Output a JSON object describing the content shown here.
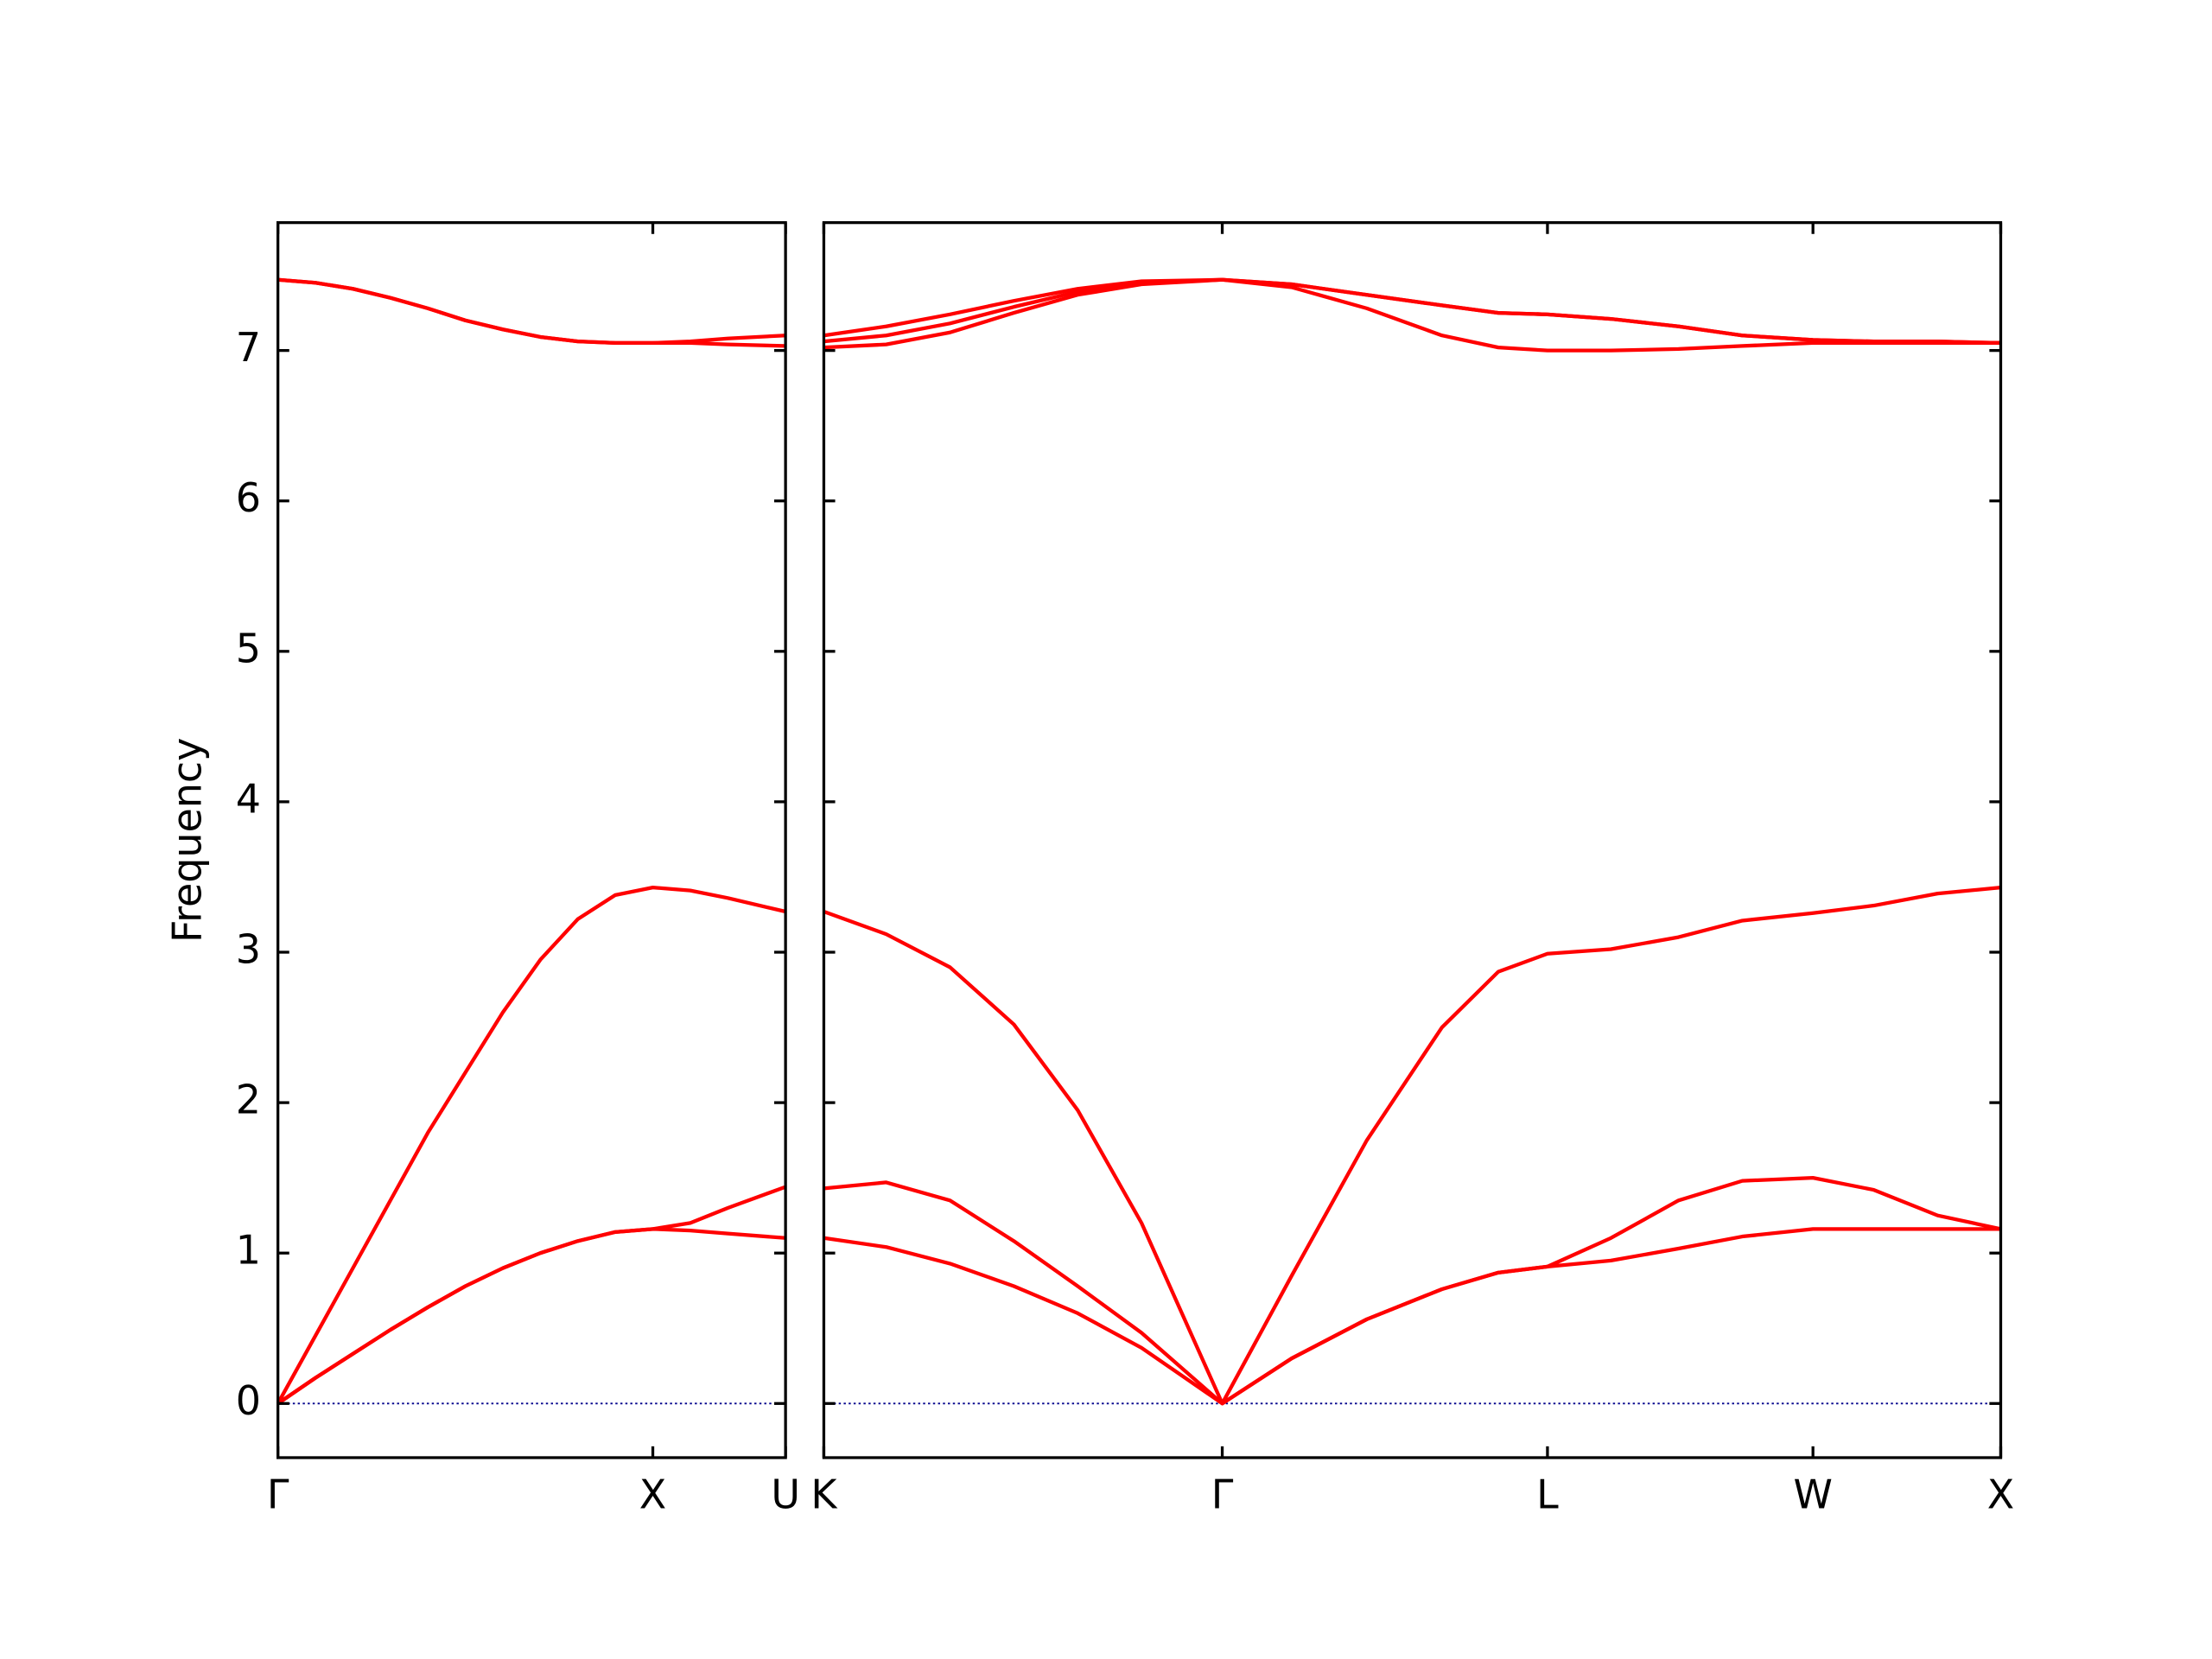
{
  "chart_data": [
    {
      "type": "line",
      "y_label": "Frequency",
      "x": [
        0,
        0.1,
        0.2,
        0.3,
        0.4,
        0.5,
        0.6,
        0.7,
        0.8,
        0.9,
        1.0,
        1.1,
        1.2,
        1.354
      ],
      "xlim": [
        0,
        1.354
      ],
      "xticks": [
        {
          "value": 0,
          "label": "Γ"
        },
        {
          "value": 1.0,
          "label": "X"
        },
        {
          "value": 1.354,
          "label": "U"
        }
      ],
      "ylim": [
        -0.36,
        7.85
      ],
      "yticks": [
        0,
        1,
        2,
        3,
        4,
        5,
        6,
        7
      ],
      "show_ytick_labels": true,
      "zero_line_color": "#00008b",
      "series": [
        {
          "color": "#ff0000",
          "values": [
            0,
            0.17,
            0.33,
            0.49,
            0.64,
            0.78,
            0.9,
            1.0,
            1.08,
            1.14,
            1.16,
            1.15,
            1.13,
            1.1
          ]
        },
        {
          "color": "#ff0000",
          "values": [
            0,
            0.17,
            0.33,
            0.49,
            0.64,
            0.78,
            0.9,
            1.0,
            1.08,
            1.14,
            1.16,
            1.2,
            1.3,
            1.44
          ]
        },
        {
          "color": "#ff0000",
          "values": [
            0,
            0.45,
            0.9,
            1.35,
            1.8,
            2.2,
            2.6,
            2.95,
            3.22,
            3.38,
            3.43,
            3.41,
            3.36,
            3.27
          ]
        },
        {
          "color": "#ff0000",
          "values": [
            7.47,
            7.45,
            7.41,
            7.35,
            7.28,
            7.2,
            7.14,
            7.09,
            7.06,
            7.05,
            7.05,
            7.05,
            7.04,
            7.03
          ]
        },
        {
          "color": "#ff0000",
          "values": [
            7.47,
            7.45,
            7.41,
            7.35,
            7.28,
            7.2,
            7.14,
            7.09,
            7.06,
            7.05,
            7.05,
            7.06,
            7.08,
            7.1
          ]
        }
      ]
    },
    {
      "type": "line",
      "x": [
        1.354,
        1.52,
        1.69,
        1.86,
        2.03,
        2.2,
        2.415,
        2.6,
        2.8,
        3.0,
        3.15,
        3.281,
        3.45,
        3.63,
        3.8,
        3.988,
        4.15,
        4.32,
        4.488
      ],
      "xlim": [
        1.354,
        4.488
      ],
      "xticks": [
        {
          "value": 1.354,
          "label": "K"
        },
        {
          "value": 2.415,
          "label": "Γ"
        },
        {
          "value": 3.281,
          "label": "L"
        },
        {
          "value": 3.988,
          "label": "W"
        },
        {
          "value": 4.488,
          "label": "X"
        }
      ],
      "ylim": [
        -0.36,
        7.85
      ],
      "yticks": [
        0,
        1,
        2,
        3,
        4,
        5,
        6,
        7
      ],
      "show_ytick_labels": false,
      "zero_line_color": "#00008b",
      "series": [
        {
          "color": "#ff0000",
          "values": [
            1.1,
            1.04,
            0.93,
            0.78,
            0.6,
            0.37,
            0,
            0.3,
            0.56,
            0.76,
            0.87,
            0.91,
            0.95,
            1.03,
            1.11,
            1.16,
            1.16,
            1.16,
            1.16
          ]
        },
        {
          "color": "#ff0000",
          "values": [
            1.43,
            1.47,
            1.35,
            1.08,
            0.78,
            0.47,
            0,
            0.3,
            0.56,
            0.76,
            0.87,
            0.91,
            1.1,
            1.35,
            1.48,
            1.5,
            1.42,
            1.25,
            1.16
          ]
        },
        {
          "color": "#ff0000",
          "values": [
            3.27,
            3.12,
            2.9,
            2.52,
            1.95,
            1.2,
            0,
            0.85,
            1.75,
            2.5,
            2.87,
            2.99,
            3.02,
            3.1,
            3.21,
            3.26,
            3.31,
            3.39,
            3.43
          ]
        },
        {
          "color": "#ff0000",
          "values": [
            7.02,
            7.04,
            7.12,
            7.25,
            7.37,
            7.44,
            7.47,
            7.42,
            7.28,
            7.1,
            7.02,
            7.0,
            7.0,
            7.01,
            7.03,
            7.05,
            7.05,
            7.05,
            7.05
          ]
        },
        {
          "color": "#ff0000",
          "values": [
            7.06,
            7.1,
            7.18,
            7.29,
            7.39,
            7.45,
            7.47,
            7.44,
            7.37,
            7.3,
            7.25,
            7.24,
            7.21,
            7.16,
            7.1,
            7.07,
            7.06,
            7.06,
            7.05
          ]
        },
        {
          "color": "#ff0000",
          "values": [
            7.1,
            7.16,
            7.24,
            7.33,
            7.41,
            7.46,
            7.47,
            7.44,
            7.37,
            7.3,
            7.25,
            7.24,
            7.21,
            7.16,
            7.1,
            7.07,
            7.06,
            7.06,
            7.05
          ]
        }
      ]
    }
  ]
}
